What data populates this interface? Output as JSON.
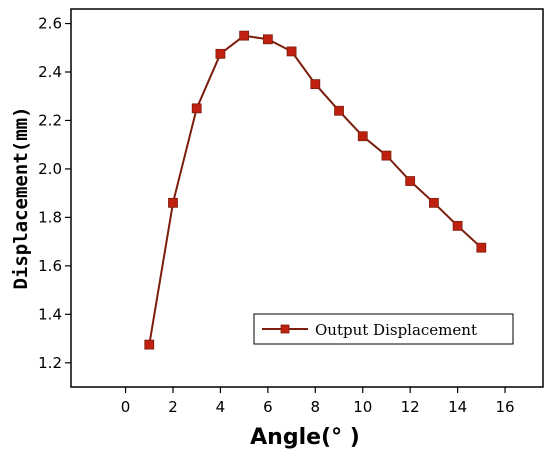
{
  "chart_data": {
    "type": "line",
    "title": "",
    "xlabel": "Angle(° )",
    "ylabel": "Displacement(mm)",
    "xlim": [
      -2.3,
      17.6
    ],
    "ylim": [
      1.1,
      2.66
    ],
    "xticks": [
      0,
      2,
      4,
      6,
      8,
      10,
      12,
      14,
      16
    ],
    "yticks": [
      1.2,
      1.4,
      1.6,
      1.8,
      2.0,
      2.2,
      2.4,
      2.6
    ],
    "xtick_labels": [
      "0",
      "2",
      "4",
      "6",
      "8",
      "10",
      "12",
      "14",
      "16"
    ],
    "ytick_labels": [
      "1.2",
      "1.4",
      "1.6",
      "1.8",
      "2.0",
      "2.2",
      "2.4",
      "2.6"
    ],
    "grid": false,
    "legend_position": "bottom-right",
    "series": [
      {
        "name": "Output Displacement",
        "color": "#7b1e0d",
        "marker_color": "#c0200f",
        "x": [
          1,
          2,
          3,
          4,
          5,
          6,
          7,
          8,
          9,
          10,
          11,
          12,
          13,
          14,
          15
        ],
        "y": [
          1.275,
          1.86,
          2.25,
          2.475,
          2.55,
          2.535,
          2.485,
          2.35,
          2.24,
          2.135,
          2.055,
          1.95,
          1.86,
          1.765,
          1.675
        ]
      }
    ]
  }
}
